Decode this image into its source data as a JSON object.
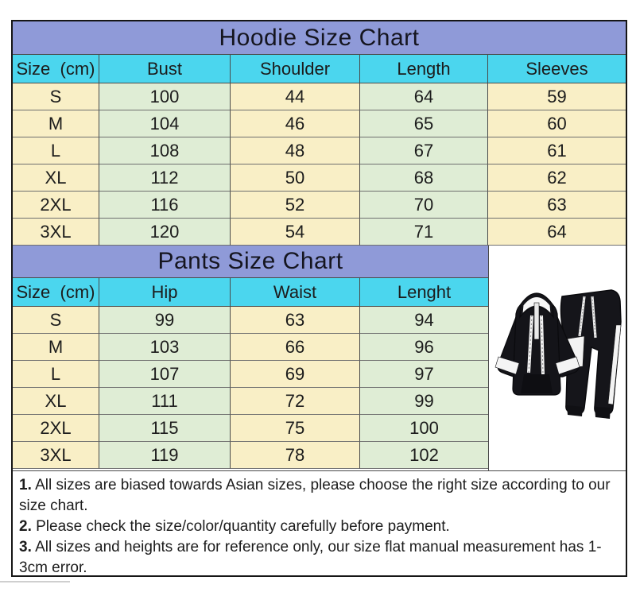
{
  "hoodie_chart": {
    "title": "Hoodie Size Chart",
    "headers": [
      "Size  (cm)",
      "Bust",
      "Shoulder",
      "Length",
      "Sleeves"
    ],
    "rows": [
      [
        "S",
        "100",
        "44",
        "64",
        "59"
      ],
      [
        "M",
        "104",
        "46",
        "65",
        "60"
      ],
      [
        "L",
        "108",
        "48",
        "67",
        "61"
      ],
      [
        "XL",
        "112",
        "50",
        "68",
        "62"
      ],
      [
        "2XL",
        "116",
        "52",
        "70",
        "63"
      ],
      [
        "3XL",
        "120",
        "54",
        "71",
        "64"
      ]
    ]
  },
  "pants_chart": {
    "title": "Pants Size Chart",
    "headers": [
      "Size  (cm)",
      "Hip",
      "Waist",
      "Lenght"
    ],
    "rows": [
      [
        "S",
        "99",
        "63",
        "94"
      ],
      [
        "M",
        "103",
        "66",
        "96"
      ],
      [
        "L",
        "107",
        "69",
        "97"
      ],
      [
        "XL",
        "111",
        "72",
        "99"
      ],
      [
        "2XL",
        "115",
        "75",
        "100"
      ],
      [
        "3XL",
        "119",
        "78",
        "102"
      ]
    ]
  },
  "product": {
    "description": "Black and white hooded tracksuit set (hoodie and jogger pants)"
  },
  "notes": [
    {
      "num": "1.",
      "text": " All sizes are biased towards Asian sizes, please choose the right size according to our size chart."
    },
    {
      "num": "2.",
      "text": " Please check the size/color/quantity carefully before payment."
    },
    {
      "num": "3.",
      "text": " All sizes and heights are for reference only, our size flat manual measurement has 1-3cm error."
    }
  ],
  "colors": {
    "title_band": "#8f9ad8",
    "header_band": "#4bd6ee",
    "cell_cream": "#f9efc6",
    "cell_green": "#dfedd5",
    "grid_line": "#4a4a4a",
    "text": "#1c1c1c"
  }
}
